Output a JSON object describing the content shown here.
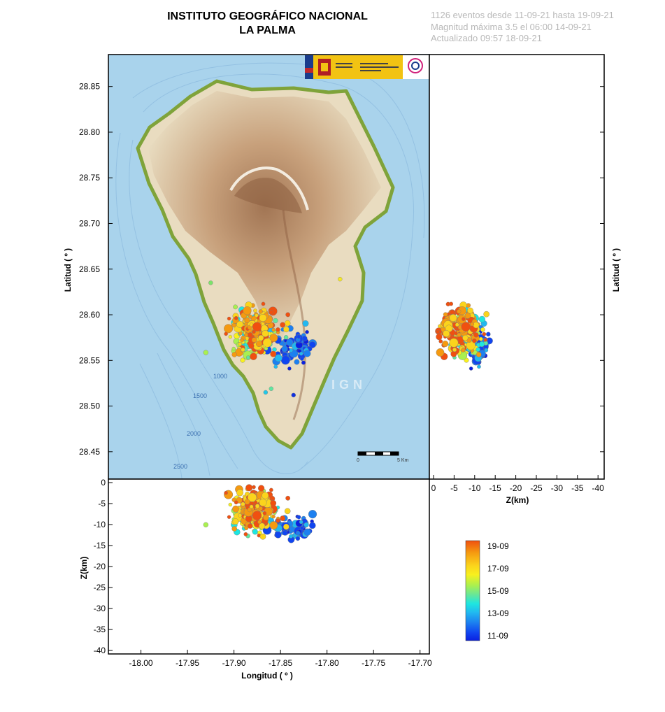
{
  "header": {
    "title": "INSTITUTO GEOGRÁFICO NACIONAL",
    "subtitle": "LA PALMA",
    "info_line1": "1126 eventos desde 11-09-21 hasta 19-09-21",
    "info_line2": "Magnitud máxima 3.5 el 06:00 14-09-21",
    "info_line3": "Actualizado   09:57  18-09-21"
  },
  "map": {
    "contour_labels": [
      "1000",
      "1500",
      "2000",
      "2500"
    ],
    "watermark": "IGN",
    "scale_bar": {
      "start_label": "0",
      "end_label": "5 Km"
    },
    "colors": {
      "sea": "#a9d3ec",
      "land": "#e9dcc0",
      "relief": "#b07a52",
      "coast": "#7fa33a"
    }
  },
  "chart_data": [
    {
      "type": "scatter",
      "panel": "map",
      "ylabel": "Latitud ( º )",
      "xlim": [
        -18.035,
        -17.69
      ],
      "ylim": [
        28.42,
        28.885
      ],
      "yticks": [
        "28.45",
        "28.50",
        "28.55",
        "28.60",
        "28.65",
        "28.70",
        "28.75",
        "28.80",
        "28.85"
      ],
      "note_points": [
        {
          "lon": -17.925,
          "lat": 28.635,
          "color": "#7be36a"
        },
        {
          "lon": -17.786,
          "lat": 28.639,
          "color": "#f5e828"
        },
        {
          "lon": -17.836,
          "lat": 28.512,
          "color": "#1030e0"
        },
        {
          "lon": -17.86,
          "lat": 28.519,
          "color": "#60e6a0"
        },
        {
          "lon": -17.866,
          "lat": 28.515,
          "color": "#21c8e8"
        }
      ]
    },
    {
      "type": "scatter",
      "panel": "longitude-depth",
      "xlabel": "Longitud ( º )",
      "ylabel": "Z(km)",
      "xlim": [
        -18.035,
        -17.69
      ],
      "ylim": [
        -41,
        0
      ],
      "xticks": [
        "-18.00",
        "-17.95",
        "-17.90",
        "-17.85",
        "-17.80",
        "-17.75",
        "-17.70"
      ],
      "yticks": [
        "0",
        "-5",
        "-10",
        "-15",
        "-20",
        "-25",
        "-30",
        "-35",
        "-40"
      ]
    },
    {
      "type": "scatter",
      "panel": "depth-latitude",
      "xlabel": "Z(km)",
      "ylabel": "Latitud ( º )",
      "xlim": [
        0,
        -41
      ],
      "ylim": [
        28.42,
        28.885
      ],
      "xticks": [
        "0",
        "-5",
        "-10",
        "-15",
        "-20",
        "-25",
        "-30",
        "-35",
        "-40"
      ]
    }
  ],
  "legend": {
    "labels": [
      "19-09",
      "17-09",
      "15-09",
      "13-09",
      "11-09"
    ],
    "colors": [
      "#f05010",
      "#f59a10",
      "#fbd41c",
      "#f8f01e",
      "#a9f050",
      "#60e6a0",
      "#1ee6e0",
      "#21b8f0",
      "#1c80f0",
      "#1045f0",
      "#0a20e0"
    ]
  }
}
